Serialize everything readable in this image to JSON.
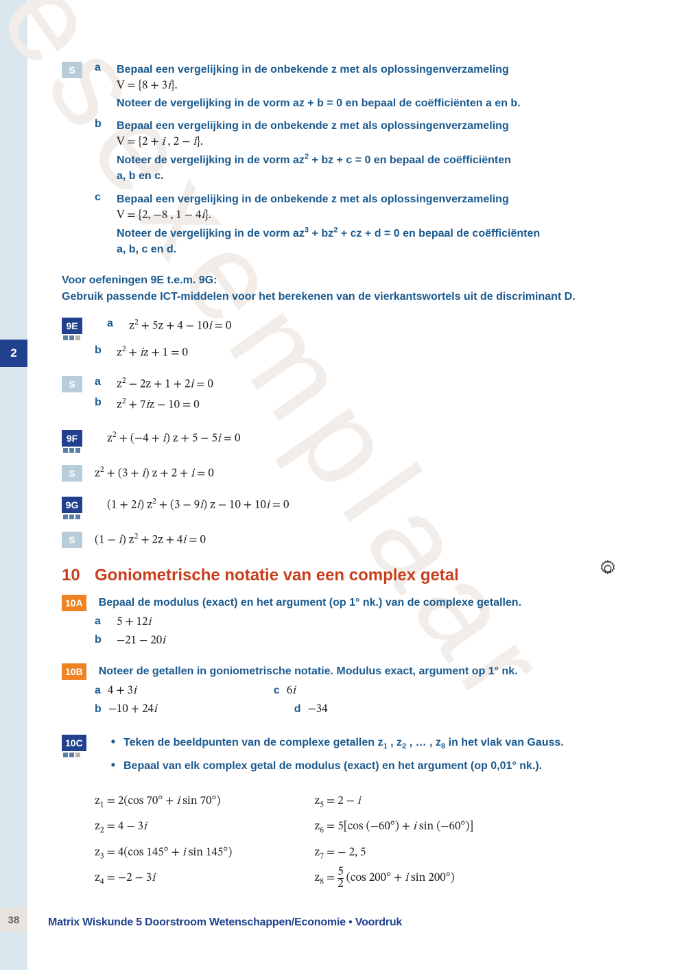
{
  "chapter_tab": "2",
  "page_number": "38",
  "footer": "Matrix Wiskunde 5 Doorstroom Wetenschappen/Economie • Voordruk",
  "watermark": "Leesexemplaar",
  "colors": {
    "primary_blue": "#21418f",
    "text_blue": "#1a5a8f",
    "orange": "#ef8322",
    "red": "#c93e1b",
    "light_blue": "#b8cdd9",
    "sidebar": "#dbe7ee",
    "gray_tab": "#e8e3de"
  },
  "ex_s1": {
    "badge": "S",
    "items": [
      {
        "l": "a",
        "line1": "Bepaal een vergelijking in de onbekende z met als oplossingenverzameling",
        "line2": "V = {8 + 3<i>i</i>}.",
        "line3": "Noteer de vergelijking in de vorm az + b = 0 en bepaal de coëfficiënten a en b."
      },
      {
        "l": "b",
        "line1": "Bepaal een vergelijking in de onbekende z met als oplossingenverzameling",
        "line2": "V = {2 + <i>i</i> , 2 − <i>i</i>}.",
        "line3": "Noteer de vergelijking in de vorm az<span class='sup'>2</span> + bz + c = 0 en bepaal de coëfficiënten",
        "line4": "a, b en c."
      },
      {
        "l": "c",
        "line1": "Bepaal een vergelijking in de onbekende z met als oplossingenverzameling",
        "line2": "V = {2, −8 , 1 − 4<i>i</i>}.",
        "line3": "Noteer de vergelijking in de vorm az<span class='sup'>3</span> + bz<span class='sup'>2</span> + cz + d = 0 en bepaal de coëfficiënten",
        "line4": "a, b, c en d."
      }
    ]
  },
  "note": {
    "line1": "Voor oefeningen 9E t.e.m. 9G:",
    "line2": "Gebruik passende ICT-middelen voor het berekenen van de vierkantswortels uit de discriminant D."
  },
  "ex_9E": {
    "badge": "9E",
    "squares": [
      1,
      1,
      0
    ],
    "a": "z<span class='sup'>2</span> + 5z + 4 − 10<i>i</i> = 0",
    "b": "z<span class='sup'>2</span> + <i>i</i>z + 1 = 0"
  },
  "ex_s2": {
    "badge": "S",
    "a": "z<span class='sup'>2</span> − 2z + 1 + 2<i>i</i> = 0",
    "b": "z<span class='sup'>2</span> + 7<i>i</i>z − 10 = 0"
  },
  "ex_9F": {
    "badge": "9F",
    "squares": [
      1,
      1,
      1
    ],
    "eq": "z<span class='sup'>2</span> + (−4 + <i>i</i>) z + 5 − 5<i>i</i> = 0"
  },
  "ex_s3": {
    "badge": "S",
    "eq": "z<span class='sup'>2</span> + (3 + <i>i</i>) z + 2 + <i>i</i> = 0"
  },
  "ex_9G": {
    "badge": "9G",
    "squares": [
      1,
      1,
      1
    ],
    "eq": "(1 + 2<i>i</i>) z<span class='sup'>2</span> + (3 − 9<i>i</i>) z − 10 + 10<i>i</i> = 0"
  },
  "ex_s4": {
    "badge": "S",
    "eq": "(1 − <i>i</i>) z<span class='sup'>2</span> + 2z + 4<i>i</i> = 0"
  },
  "section10": {
    "num": "10",
    "title": "Goniometrische notatie van een complex getal"
  },
  "ex_10A": {
    "badge": "10A",
    "intro": "Bepaal de modulus (exact) en het argument (op 1° nk.) van de complexe getallen.",
    "a": "5 + 12<i>i</i>",
    "b": "−21 − 20<i>i</i>"
  },
  "ex_10B": {
    "badge": "10B",
    "intro": "Noteer de getallen in goniometrische notatie. Modulus exact, argument op 1° nk.",
    "a": "4 + 3<i>i</i>",
    "b": "−10 + 24<i>i</i>",
    "c": "6<i>i</i>",
    "d": "−34"
  },
  "ex_10C": {
    "badge": "10C",
    "squares": [
      1,
      1,
      0
    ],
    "bullet1": "Teken de beeldpunten van de complexe getallen z<span class='sub'>1</span> , z<span class='sub'>2</span> , … , z<span class='sub'>8</span> in het vlak van Gauss.",
    "bullet2": "Bepaal van elk complex getal de modulus (exact) en het argument (op 0,01° nk.).",
    "z1": "z<span class='sub'>1</span> = 2(cos 70° + <i>i</i> sin 70°)",
    "z2": "z<span class='sub'>2</span> = 4 − 3<i>i</i>",
    "z3": "z<span class='sub'>3</span> = 4(cos 145° + <i>i</i> sin 145°)",
    "z4": "z<span class='sub'>4</span> = −2 − 3<i>i</i>",
    "z5": "z<span class='sub'>5</span> = 2 − <i>i</i>",
    "z6": "z<span class='sub'>6</span> = 5[cos (−60°)  + <i>i</i> sin (−60°)]",
    "z7": "z<span class='sub'>7</span> = − 2, 5",
    "z8": "z<span class='sub'>8</span> = <span style='display:inline-block;vertical-align:middle;text-align:center;line-height:1;'><span style='display:block;border-bottom:1px solid #222;'>5</span><span style='display:block;'>2</span></span> (cos 200° + <i>i</i> sin 200°)"
  }
}
